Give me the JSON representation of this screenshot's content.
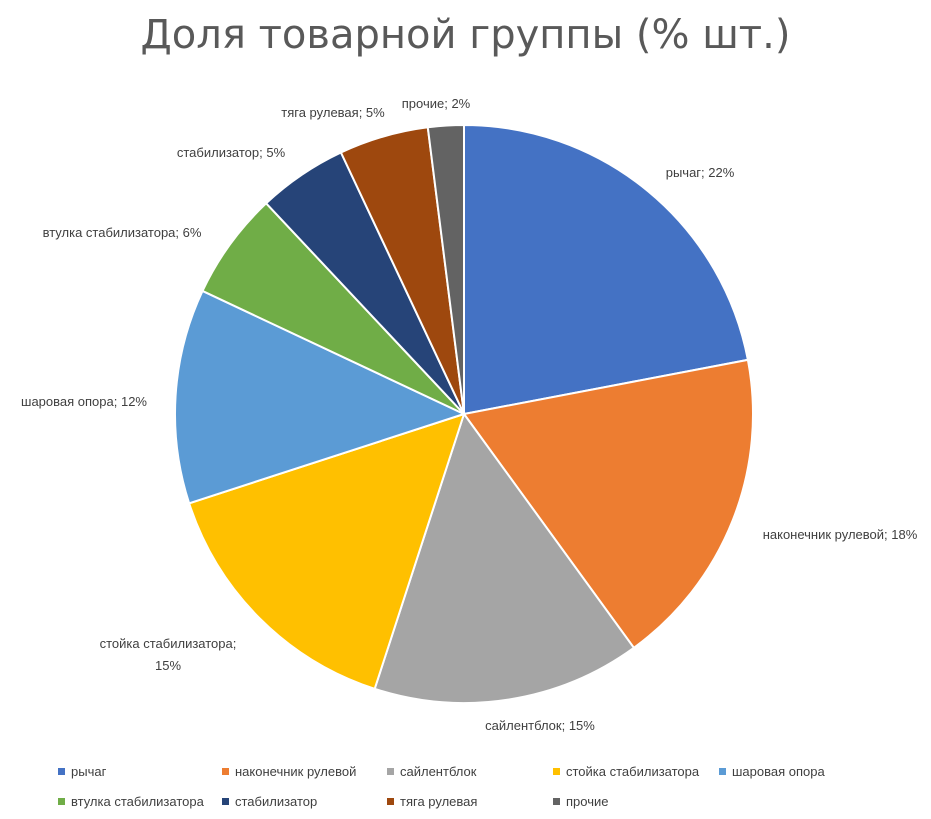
{
  "chart_data": {
    "type": "pie",
    "title": "Доля товарной группы (% шт.)",
    "slices": [
      {
        "name": "рычаг",
        "value": 22,
        "label": "рычаг; 22%",
        "color": "#4472C4"
      },
      {
        "name": "наконечник рулевой",
        "value": 18,
        "label": "наконечник рулевой; 18%",
        "color": "#ED7D31"
      },
      {
        "name": "сайлентблок",
        "value": 15,
        "label": "сайлентблок; 15%",
        "color": "#A5A5A5"
      },
      {
        "name": "стойка стабилизатора",
        "value": 15,
        "label_lines": [
          "стойка стабилизатора;",
          "15%"
        ],
        "color": "#FFC000"
      },
      {
        "name": "шаровая опора",
        "value": 12,
        "label": "шаровая опора; 12%",
        "color": "#5B9BD5"
      },
      {
        "name": "втулка стабилизатора",
        "value": 6,
        "label": "втулка стабилизатора; 6%",
        "color": "#70AD47"
      },
      {
        "name": "стабилизатор",
        "value": 5,
        "label": "стабилизатор; 5%",
        "color": "#264478"
      },
      {
        "name": "тяга рулевая",
        "value": 5,
        "label": "тяга рулевая; 5%",
        "color": "#9E480E"
      },
      {
        "name": "прочие",
        "value": 2,
        "label": "прочие; 2%",
        "color": "#636363"
      }
    ],
    "legend_position": "bottom"
  }
}
